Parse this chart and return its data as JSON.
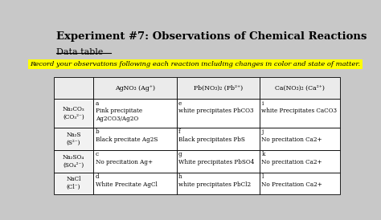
{
  "title": "Experiment #7: Observations of Chemical Reactions",
  "subtitle": "Data table",
  "highlight_text": "Record your observations following each reaction including changes in color and state of matter.",
  "highlight_color": "#FFFF00",
  "bg_color": "#C8C8C8",
  "col_headers": [
    "AgNO₃ (Ag⁺)",
    "Pb(NO₃)₂ (Pb²⁺)",
    "Ca(NO₃)₂ (Ca²⁺)"
  ],
  "row_headers": [
    "Na₂CO₃\n(CO₃²⁻)",
    "Na₂S\n(S²⁻)",
    "Na₂SO₄\n(SO₄²⁻)",
    "NaCl\n(Cl⁻)"
  ],
  "cells": [
    [
      "a\nPink precipitate\nAg2CO3/Ag2O",
      "e\nwhite precipitates PbCO3",
      "i\nwhite Precipitates CaCO3"
    ],
    [
      "b\nBlack precitate Ag2S",
      "f\nBlack precipitates PbS",
      "j\nNo precitation Ca2+"
    ],
    [
      "c\nNo precitation Ag+",
      "g\nWhite precipitates PbSO4",
      "k\nNo precitation Ca2+"
    ],
    [
      "d\nWhite Precitate AgCl",
      "h\nwhite precipitates PbCl2",
      "l\nNo Precitation Ca2+"
    ]
  ]
}
